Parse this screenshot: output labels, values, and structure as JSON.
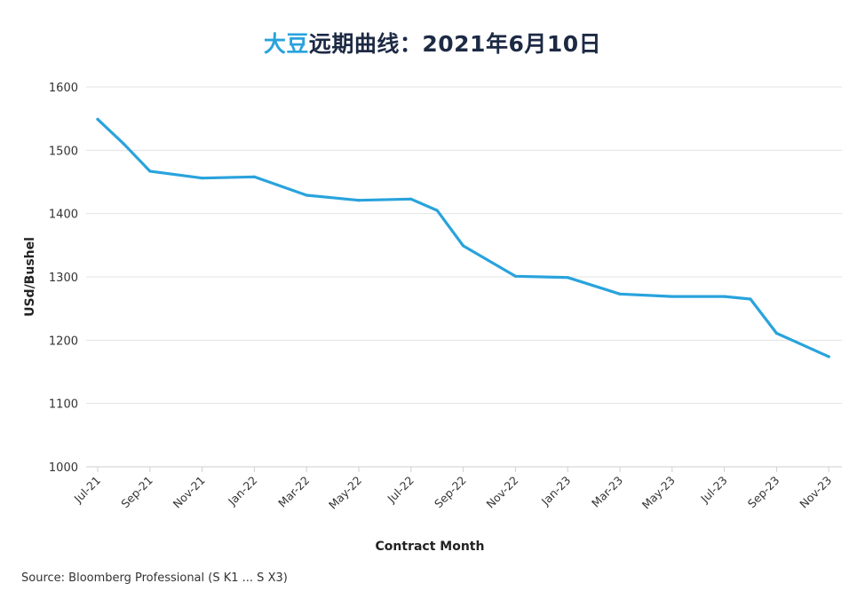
{
  "chart_data": {
    "type": "line",
    "title_accent": "大豆",
    "title_rest": "远期曲线：2021年6月10日",
    "xlabel": "Contract Month",
    "ylabel": "USd/Bushel",
    "ylim": [
      1000,
      1600
    ],
    "yticks": [
      1000,
      1100,
      1200,
      1300,
      1400,
      1500,
      1600
    ],
    "grid": true,
    "line_color": "#29a3dc",
    "x_tick_labels": [
      "Jul-21",
      "Sep-21",
      "Nov-21",
      "Jan-22",
      "Mar-22",
      "May-22",
      "Jul-22",
      "Sep-22",
      "Nov-22",
      "Jan-23",
      "Mar-23",
      "May-23",
      "Jul-23",
      "Sep-23",
      "Nov-23"
    ],
    "x": [
      "Jul-21",
      "Aug-21",
      "Sep-21",
      "Nov-21",
      "Jan-22",
      "Mar-22",
      "May-22",
      "Jul-22",
      "Aug-22",
      "Sep-22",
      "Nov-22",
      "Jan-23",
      "Mar-23",
      "May-23",
      "Jul-23",
      "Aug-23",
      "Sep-23",
      "Nov-23"
    ],
    "series": [
      {
        "values": [
          1549,
          1510,
          1467,
          1456,
          1458,
          1429,
          1421,
          1423,
          1405,
          1349,
          1301,
          1299,
          1273,
          1269,
          1269,
          1265,
          1211,
          1174
        ]
      }
    ]
  },
  "source": "Source: Bloomberg Professional (S K1 ... S X3)"
}
